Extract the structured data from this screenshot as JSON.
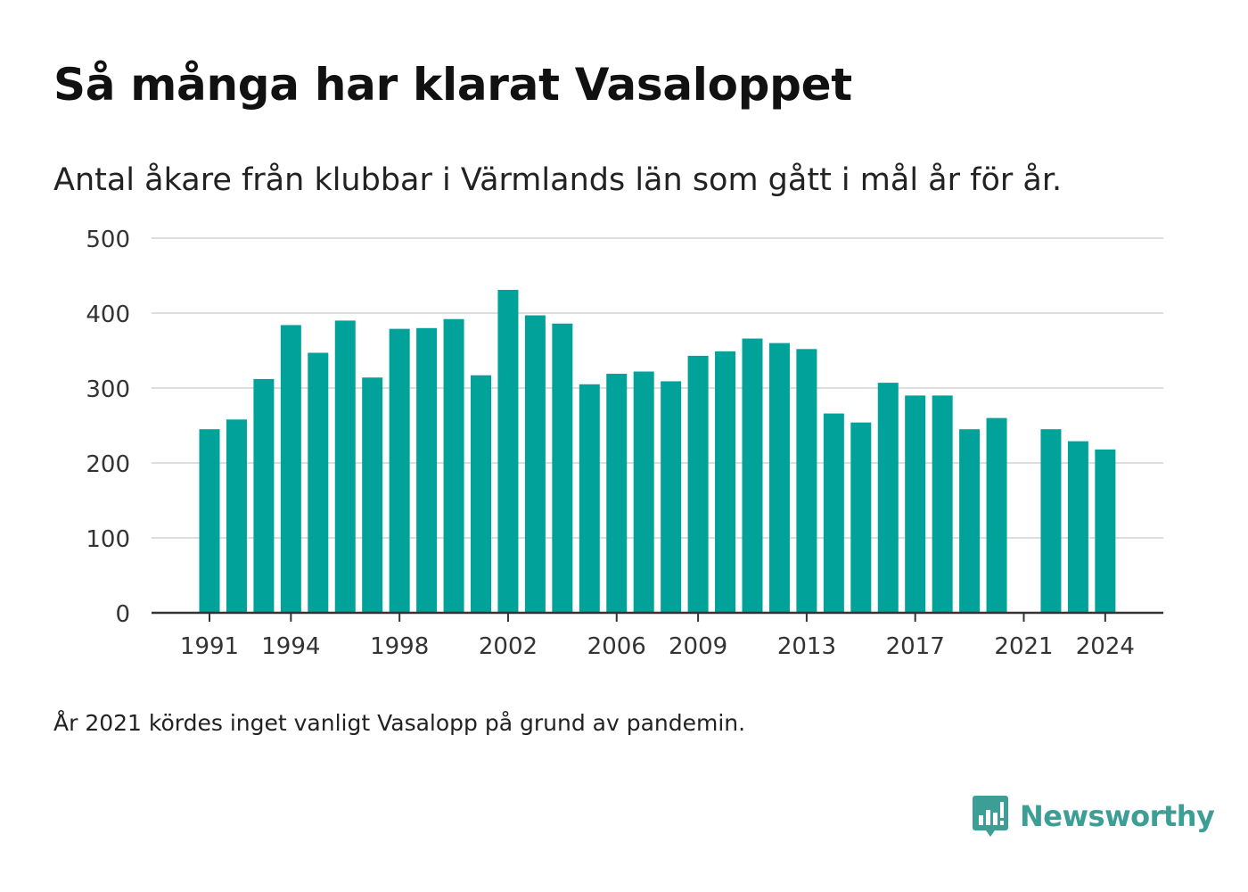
{
  "header": {
    "title": "Så många har klarat Vasaloppet",
    "subtitle": "Antal åkare från klubbar i Värmlands län som gått i mål år för år."
  },
  "footnote": "År 2021 kördes inget vanligt Vasalopp på grund av pandemin.",
  "brand": {
    "name": "Newsworthy",
    "icon": "newsworthy-logo-icon",
    "color": "#3d9e96"
  },
  "chart_data": {
    "type": "bar",
    "bar_color": "#00a29a",
    "categories": [
      1991,
      1992,
      1993,
      1994,
      1995,
      1996,
      1997,
      1998,
      1999,
      2000,
      2001,
      2002,
      2003,
      2004,
      2005,
      2006,
      2007,
      2008,
      2009,
      2010,
      2011,
      2012,
      2013,
      2014,
      2015,
      2016,
      2017,
      2018,
      2019,
      2020,
      2021,
      2022,
      2023,
      2024
    ],
    "values": [
      245,
      258,
      312,
      384,
      347,
      390,
      314,
      379,
      380,
      392,
      317,
      431,
      397,
      386,
      305,
      319,
      322,
      309,
      343,
      349,
      366,
      360,
      352,
      266,
      254,
      307,
      290,
      290,
      245,
      260,
      null,
      245,
      229,
      218
    ],
    "x_tick_labels": [
      "1991",
      "1994",
      "1998",
      "2002",
      "2006",
      "2009",
      "2013",
      "2017",
      "2021",
      "2024"
    ],
    "y_ticks": [
      0,
      100,
      200,
      300,
      400,
      500
    ],
    "ylim": [
      0,
      500
    ],
    "grid": true
  }
}
